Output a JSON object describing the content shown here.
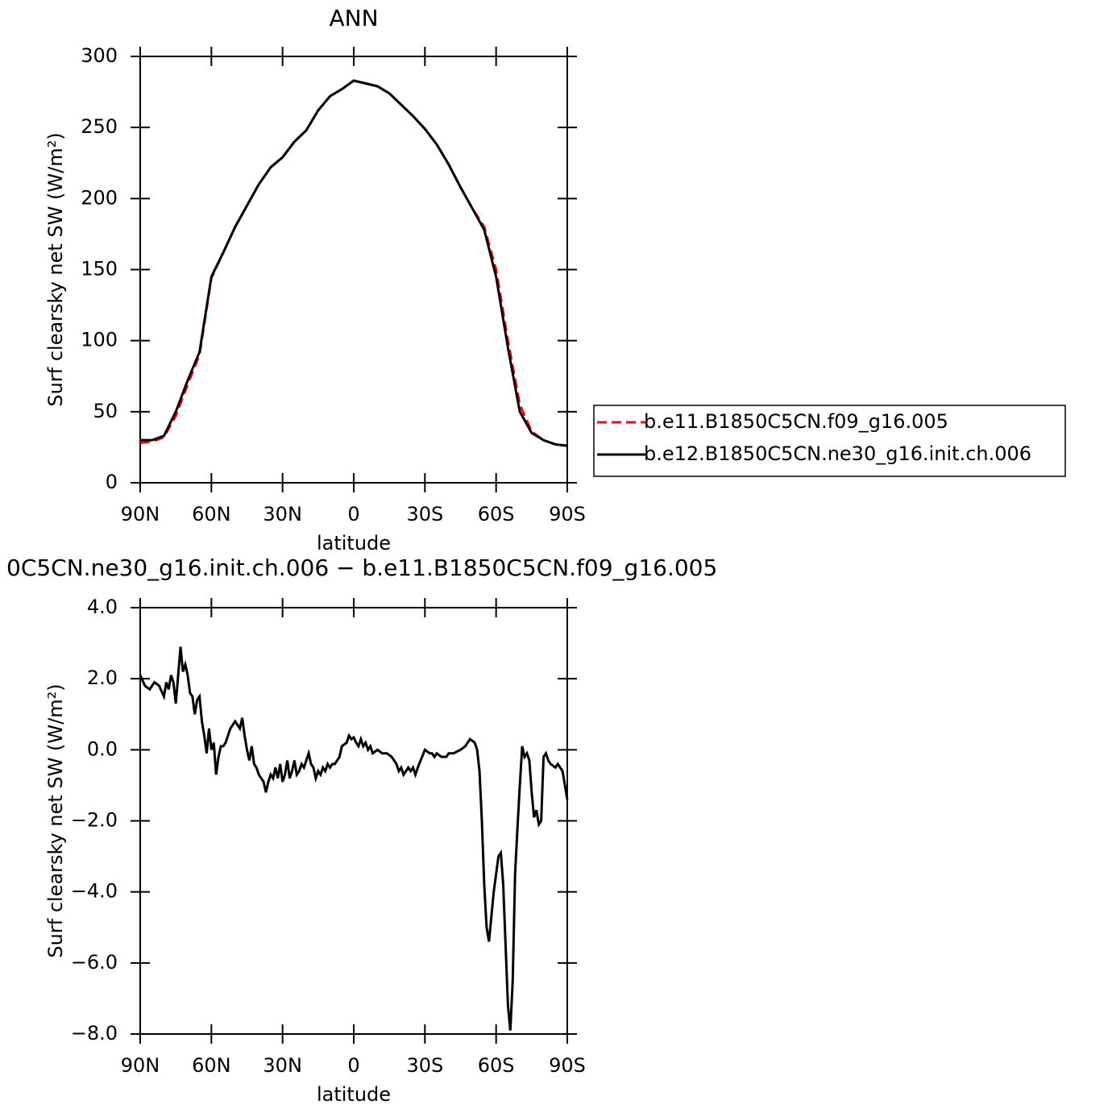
{
  "chart_data": [
    {
      "type": "line",
      "title": "ANN",
      "xlabel": "latitude",
      "ylabel": "Surf clearsky net SW (W/m²)",
      "x": [
        90,
        85,
        80,
        75,
        70,
        65,
        60,
        55,
        50,
        45,
        40,
        35,
        30,
        25,
        20,
        15,
        10,
        5,
        0,
        -5,
        -10,
        -15,
        -20,
        -25,
        -30,
        -35,
        -40,
        -45,
        -50,
        -55,
        -60,
        -65,
        -70,
        -75,
        -80,
        -85,
        -90
      ],
      "series": [
        {
          "name": "b.e11.B1850C5CN.f09_g16.005",
          "color": "#ff0000",
          "line_style": "dashed",
          "values": [
            28,
            29,
            32,
            47,
            69,
            90,
            144,
            162,
            180,
            195,
            210,
            222,
            229,
            240,
            248,
            262,
            272,
            277,
            283,
            281,
            279,
            274,
            266,
            258,
            249,
            238,
            224,
            208,
            193,
            180,
            150,
            100,
            55,
            36,
            30,
            27,
            26
          ]
        },
        {
          "name": "b.e12.B1850C5CN.ne30_g16.init.ch.006",
          "color": "#000000",
          "line_style": "solid",
          "values": [
            30,
            30,
            33,
            50,
            72,
            92,
            145,
            162,
            180,
            195,
            210,
            222,
            229,
            240,
            248,
            262,
            272,
            277,
            283,
            281,
            279,
            274,
            266,
            258,
            249,
            238,
            224,
            208,
            193,
            178,
            145,
            95,
            50,
            35,
            30,
            27,
            26
          ]
        }
      ],
      "xlim": [
        90,
        -90
      ],
      "xticks": [
        {
          "value": 90,
          "label": "90N"
        },
        {
          "value": 60,
          "label": "60N"
        },
        {
          "value": 30,
          "label": "30N"
        },
        0,
        {
          "value": -30,
          "label": "30S"
        },
        {
          "value": -60,
          "label": "60S"
        },
        {
          "value": -90,
          "label": "90S"
        }
      ],
      "ylim": [
        0,
        300
      ],
      "yticks": [
        0,
        50,
        100,
        150,
        200,
        250,
        300
      ],
      "legend": "right"
    },
    {
      "type": "line",
      "title": "0C5CN.ne30_g16.init.ch.006 − b.e11.B1850C5CN.f09_g16.005",
      "xlabel": "latitude",
      "ylabel": "Surf clearsky net SW (W/m²)",
      "x": [
        90,
        88,
        86,
        84,
        82,
        80,
        79,
        78,
        77,
        76,
        75,
        74,
        73,
        72,
        71,
        70,
        69,
        68,
        67,
        66,
        65,
        64,
        63,
        62,
        61,
        60,
        59,
        58,
        57,
        56,
        55,
        54,
        53,
        52,
        50,
        48,
        47,
        46,
        45,
        44,
        43,
        42,
        41,
        40,
        38,
        37,
        36,
        35,
        34,
        33,
        32,
        31,
        30,
        29,
        28,
        27,
        26,
        25,
        24,
        23,
        22,
        21,
        20,
        19,
        18,
        17,
        16,
        15,
        14,
        13,
        12,
        11,
        10,
        9,
        8,
        6,
        5,
        3,
        2,
        1,
        0,
        -1,
        -2,
        -3,
        -4,
        -5,
        -6,
        -7,
        -8,
        -10,
        -12,
        -14,
        -16,
        -18,
        -19,
        -20,
        -21,
        -23,
        -24,
        -25,
        -26,
        -27,
        -30,
        -32,
        -33,
        -34,
        -35,
        -37,
        -39,
        -40,
        -42,
        -45,
        -47,
        -49,
        -51,
        -52,
        -53,
        -54,
        -55,
        -56,
        -57,
        -59,
        -61,
        -62,
        -63,
        -64,
        -65,
        -66,
        -67,
        -68,
        -69,
        -70,
        -71,
        -72,
        -73,
        -74,
        -75,
        -76,
        -77,
        -78,
        -79,
        -80,
        -81,
        -82,
        -83,
        -85,
        -86,
        -87,
        -88,
        -89,
        -90
      ],
      "series": [
        {
          "color": "#000000",
          "line_style": "solid",
          "values": [
            2.1,
            1.8,
            1.7,
            1.9,
            1.8,
            1.5,
            1.9,
            1.7,
            2.1,
            1.9,
            1.3,
            2.1,
            2.9,
            2.2,
            2.4,
            2.1,
            1.6,
            1.5,
            1.0,
            1.4,
            1.5,
            0.8,
            0.4,
            -0.1,
            0.6,
            0.0,
            0.2,
            -0.7,
            -0.2,
            0.1,
            0.1,
            0.2,
            0.4,
            0.6,
            0.8,
            0.6,
            0.9,
            0.4,
            0.0,
            -0.3,
            0.1,
            -0.4,
            -0.5,
            -0.7,
            -0.9,
            -1.2,
            -0.9,
            -0.7,
            -0.8,
            -0.5,
            -0.8,
            -0.4,
            -0.9,
            -0.7,
            -0.3,
            -0.8,
            -0.6,
            -0.3,
            -0.7,
            -0.6,
            -0.4,
            -0.5,
            -0.3,
            -0.1,
            -0.4,
            -0.5,
            -0.8,
            -0.6,
            -0.7,
            -0.5,
            -0.6,
            -0.4,
            -0.5,
            -0.4,
            -0.4,
            -0.2,
            0.1,
            0.2,
            0.4,
            0.3,
            0.35,
            0.2,
            0.1,
            0.3,
            0.1,
            0.2,
            0.0,
            0.1,
            -0.1,
            0.0,
            -0.1,
            -0.1,
            -0.2,
            -0.4,
            -0.6,
            -0.5,
            -0.7,
            -0.5,
            -0.6,
            -0.5,
            -0.7,
            -0.5,
            0.0,
            -0.1,
            -0.1,
            -0.2,
            -0.1,
            -0.2,
            -0.2,
            -0.1,
            -0.1,
            0.0,
            0.1,
            0.3,
            0.2,
            0.0,
            -0.6,
            -2.0,
            -3.8,
            -5.0,
            -5.4,
            -4.0,
            -3.0,
            -2.9,
            -3.8,
            -5.5,
            -7.2,
            -7.9,
            -6.5,
            -3.5,
            -2.2,
            -1.0,
            0.1,
            -0.2,
            -0.1,
            -0.3,
            -1.2,
            -1.9,
            -1.7,
            -2.1,
            -2.0,
            -0.2,
            -0.1,
            -0.3,
            -0.4,
            -0.5,
            -0.4,
            -0.5,
            -0.6,
            -1.0,
            -1.4
          ]
        }
      ],
      "xlim": [
        90,
        -90
      ],
      "xticks": [
        {
          "value": 90,
          "label": "90N"
        },
        {
          "value": 60,
          "label": "60N"
        },
        {
          "value": 30,
          "label": "30N"
        },
        0,
        {
          "value": -30,
          "label": "30S"
        },
        {
          "value": -60,
          "label": "60S"
        },
        {
          "value": -90,
          "label": "90S"
        }
      ],
      "ylim": [
        -8,
        4
      ],
      "yticks": [
        {
          "value": -8,
          "label": "−8.0"
        },
        {
          "value": -6,
          "label": "−6.0"
        },
        {
          "value": -4,
          "label": "−4.0"
        },
        {
          "value": -2,
          "label": "−2.0"
        },
        {
          "value": 0,
          "label": "0.0"
        },
        {
          "value": 2,
          "label": "2.0"
        },
        {
          "value": 4,
          "label": "4.0"
        }
      ]
    }
  ]
}
